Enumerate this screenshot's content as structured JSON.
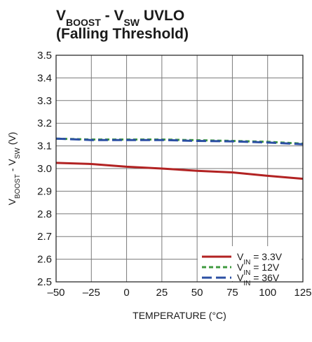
{
  "chart_data": {
    "type": "line",
    "title": {
      "main": "V",
      "sub1": "BOOST",
      "mid": " - V",
      "sub2": "SW",
      "tail": " UVLO"
    },
    "subtitle": "(Falling Threshold)",
    "xlabel": "TEMPERATURE (°C)",
    "ylabel": {
      "main": "V",
      "sub1": "BOOST",
      "mid": " - V",
      "sub2": "SW",
      "tail": " (V)"
    },
    "xlim": [
      -50,
      125
    ],
    "ylim": [
      2.5,
      3.5
    ],
    "xticks": [
      "–50",
      "–25",
      "0",
      "25",
      "50",
      "75",
      "100",
      "125"
    ],
    "xtick_values": [
      -50,
      -25,
      0,
      25,
      50,
      75,
      100,
      125
    ],
    "yticks": [
      "2.5",
      "2.6",
      "2.7",
      "2.8",
      "2.9",
      "3.0",
      "3.1",
      "3.2",
      "3.3",
      "3.4",
      "3.5"
    ],
    "ytick_values": [
      2.5,
      2.6,
      2.7,
      2.8,
      2.9,
      3.0,
      3.1,
      3.2,
      3.3,
      3.4,
      3.5
    ],
    "grid": true,
    "legend_position": "bottom-right",
    "series": [
      {
        "label": {
          "pre": "V",
          "sub": "IN",
          "post": " = 3.3V"
        },
        "color": "#b22222",
        "dash": "solid",
        "x": [
          -50,
          -25,
          0,
          25,
          50,
          75,
          100,
          125
        ],
        "y": [
          3.025,
          3.02,
          3.008,
          3.0,
          2.99,
          2.983,
          2.968,
          2.955
        ]
      },
      {
        "label": {
          "pre": "V",
          "sub": "IN",
          "post": " = 12V"
        },
        "color": "#3f9a3f",
        "dash": "short",
        "x": [
          -50,
          -25,
          0,
          25,
          50,
          75,
          100,
          125
        ],
        "y": [
          3.132,
          3.128,
          3.128,
          3.128,
          3.125,
          3.122,
          3.118,
          3.11
        ]
      },
      {
        "label": {
          "pre": "V",
          "sub": "IN",
          "post": " = 36V"
        },
        "color": "#2b4fa3",
        "dash": "long",
        "x": [
          -50,
          -25,
          0,
          25,
          50,
          75,
          100,
          125
        ],
        "y": [
          3.132,
          3.126,
          3.126,
          3.126,
          3.122,
          3.12,
          3.115,
          3.107
        ]
      }
    ]
  }
}
